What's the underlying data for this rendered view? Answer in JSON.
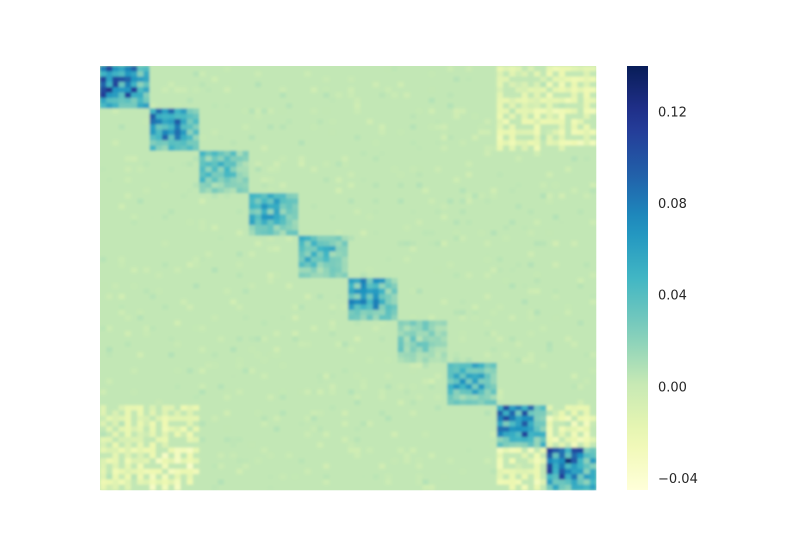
{
  "chart_data": {
    "type": "heatmap",
    "title": "",
    "xlabel": "",
    "ylabel": "",
    "matrix_size": 80,
    "block_count": 10,
    "block_size": 8,
    "background_value": 0.003,
    "colormap": "YlGnBu",
    "colorbar": {
      "vmin": -0.045,
      "vmax": 0.14,
      "ticks": [
        0.12,
        0.08,
        0.04,
        0.0,
        -0.04
      ],
      "tick_labels": [
        "0.12",
        "0.08",
        "0.04",
        "0.00",
        "−0.04"
      ]
    },
    "block_peak_values": [
      0.125,
      0.1,
      0.055,
      0.07,
      0.06,
      0.08,
      0.035,
      0.07,
      0.11,
      0.13
    ],
    "off_diagonal_negative_blocks": [
      {
        "block_row": 0,
        "block_col": 8,
        "value": -0.02
      },
      {
        "block_row": 0,
        "block_col": 9,
        "value": -0.025
      },
      {
        "block_row": 1,
        "block_col": 8,
        "value": -0.025
      },
      {
        "block_row": 1,
        "block_col": 9,
        "value": -0.03
      },
      {
        "block_row": 8,
        "block_col": 0,
        "value": -0.02
      },
      {
        "block_row": 8,
        "block_col": 1,
        "value": -0.025
      },
      {
        "block_row": 9,
        "block_col": 0,
        "value": -0.025
      },
      {
        "block_row": 9,
        "block_col": 1,
        "value": -0.035
      },
      {
        "block_row": 8,
        "block_col": 9,
        "value": -0.03
      },
      {
        "block_row": 9,
        "block_col": 8,
        "value": -0.03
      }
    ],
    "grid": false
  }
}
